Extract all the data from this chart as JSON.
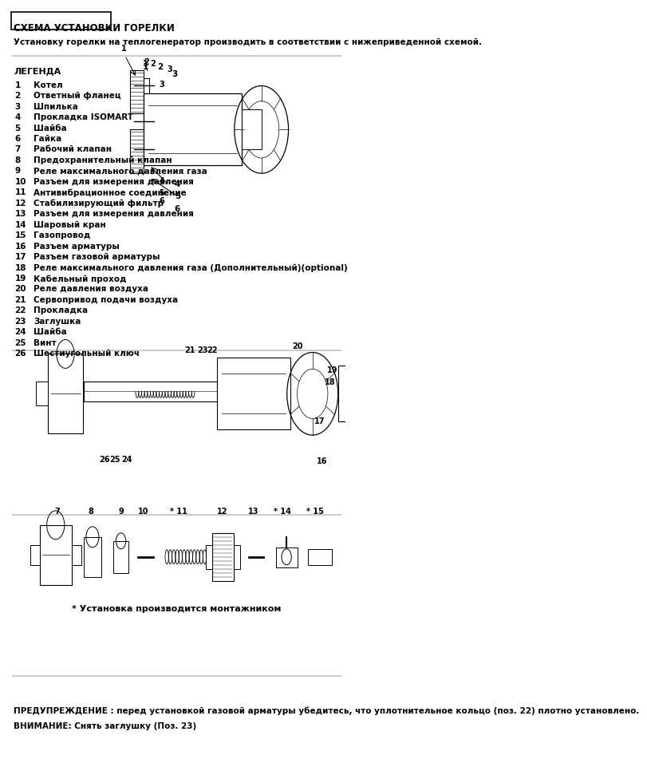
{
  "title_box": "СХЕМА УСТАНОВКИ ГОРЕЛКИ",
  "subtitle": "Установку горелки на теплогенератор производить в соответствии с нижеприведенной схемой.",
  "legend_title": "ЛЕГЕНДА",
  "legend_items": [
    [
      "1",
      "Котел"
    ],
    [
      "2",
      "Ответный фланец"
    ],
    [
      "3",
      "Шпилька"
    ],
    [
      "4",
      "Прокладка ISOMART"
    ],
    [
      "5",
      "Шайба"
    ],
    [
      "6",
      "Гайка"
    ],
    [
      "7",
      "Рабочий клапан"
    ],
    [
      "8",
      "Предохранительный клапан"
    ],
    [
      "9",
      "Реле максимального давления газа"
    ],
    [
      "10",
      "Разъем для измерения давления"
    ],
    [
      "11",
      "Антивибрационное соединение"
    ],
    [
      "12",
      "Стабилизирующий фильтр"
    ],
    [
      "13",
      "Разъем для измерения давления"
    ],
    [
      "14",
      "Шаровый кран"
    ],
    [
      "15",
      "Газопровод"
    ],
    [
      "16",
      "Разъем арматуры"
    ],
    [
      "17",
      "Разъем газовой арматуры"
    ],
    [
      "18",
      "Реле максимального давления газа (Дополнительный)(optional)"
    ],
    [
      "19",
      "Кабельный проход"
    ],
    [
      "20",
      "Реле давления воздуха"
    ],
    [
      "21",
      "Сервопривод подачи воздуха"
    ],
    [
      "22",
      "Прокладка"
    ],
    [
      "23",
      "Заглушка"
    ],
    [
      "24",
      "Шайба"
    ],
    [
      "25",
      "Винт"
    ],
    [
      "26",
      "Шестиугольный ключ"
    ]
  ],
  "warning1": "ПРЕДУПРЕЖДЕНИЕ : перед установкой газовой арматуры убедитесь, что уплотнительное кольцо (поз. 22) плотно установлено.",
  "warning2": "ВНИМАНИЕ: Снять заглушку (Поз. 23)",
  "installer_note": "* Установка производится монтажником",
  "bg_color": "#ffffff",
  "text_color": "#000000",
  "font_size_title": 8.5,
  "font_size_body": 7.5,
  "font_size_legend": 7.5
}
